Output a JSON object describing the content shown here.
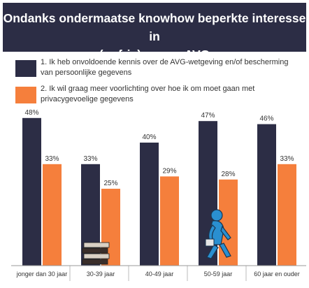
{
  "title_line1": "Ondanks ondermaatse knowhow beperkte interesse in",
  "title_line2": "(opfris)cursus AVG",
  "colors": {
    "series1": "#2c2d45",
    "series2": "#f57f3c",
    "title_bg": "#2c2d45",
    "figure": "#2a8fd0"
  },
  "chart_data": {
    "type": "bar",
    "categories": [
      "jonger dan 30 jaar",
      "30-39 jaar",
      "40-49 jaar",
      "50-59 jaar",
      "60 jaar en ouder"
    ],
    "series": [
      {
        "name": "1. Ik heb onvoldoende kennis over de AVG-wetgeving en/of bescherming van persoonlijke gegevens",
        "values": [
          48,
          33,
          40,
          47,
          46
        ],
        "labels": [
          "48%",
          "33%",
          "40%",
          "47%",
          "46%"
        ]
      },
      {
        "name": "2. Ik wil graag meer voorlichting over hoe ik om moet gaan met privacygevoelige gegevens",
        "values": [
          33,
          25,
          29,
          28,
          33
        ],
        "labels": [
          "33%",
          "25%",
          "29%",
          "28%",
          "33%"
        ]
      }
    ],
    "ylim": [
      0,
      50
    ],
    "grid": false,
    "legend": "top",
    "decorations": [
      "book-stack-icon",
      "walking-person-icon"
    ]
  }
}
